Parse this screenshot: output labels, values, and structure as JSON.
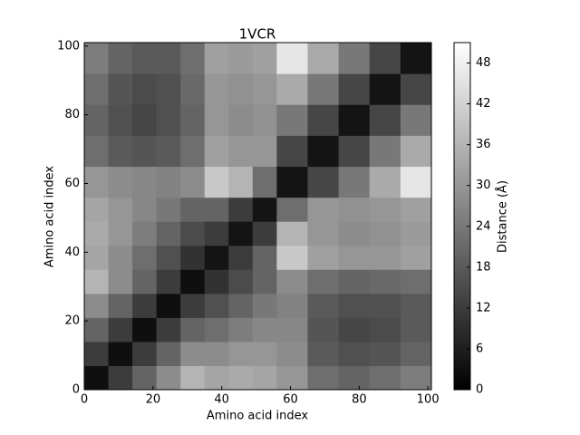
{
  "chart_data": {
    "type": "heatmap",
    "title": "1VCR",
    "xlabel": "Amino acid index",
    "ylabel": "Amino acid index",
    "colormap": "gray",
    "xbins": [
      0,
      7,
      14,
      21,
      28,
      35,
      42,
      49,
      56,
      65,
      74,
      83,
      92,
      101
    ],
    "ybins": [
      0,
      7,
      14,
      21,
      28,
      35,
      42,
      49,
      56,
      65,
      74,
      83,
      92,
      101
    ],
    "values": [
      [
        3,
        12,
        20,
        28,
        36,
        33,
        34,
        33,
        30,
        22,
        20,
        22,
        25
      ],
      [
        12,
        3,
        12,
        20,
        28,
        28,
        30,
        30,
        28,
        18,
        16,
        17,
        20
      ],
      [
        20,
        12,
        3,
        12,
        20,
        22,
        25,
        27,
        27,
        17,
        14,
        15,
        18
      ],
      [
        28,
        20,
        12,
        3,
        12,
        16,
        20,
        24,
        26,
        18,
        16,
        16,
        18
      ],
      [
        36,
        28,
        20,
        12,
        3,
        10,
        15,
        20,
        28,
        22,
        20,
        21,
        22
      ],
      [
        33,
        28,
        22,
        16,
        10,
        4,
        12,
        20,
        40,
        32,
        30,
        30,
        32
      ],
      [
        34,
        30,
        25,
        20,
        15,
        12,
        4,
        12,
        36,
        30,
        28,
        29,
        31
      ],
      [
        33,
        30,
        27,
        24,
        20,
        20,
        12,
        4,
        22,
        30,
        29,
        30,
        32
      ],
      [
        30,
        28,
        27,
        26,
        28,
        40,
        36,
        22,
        4,
        14,
        24,
        34,
        46
      ],
      [
        22,
        18,
        17,
        18,
        22,
        32,
        30,
        30,
        14,
        4,
        14,
        24,
        34
      ],
      [
        20,
        16,
        14,
        16,
        20,
        30,
        28,
        29,
        24,
        14,
        4,
        14,
        24
      ],
      [
        22,
        17,
        15,
        16,
        21,
        30,
        29,
        30,
        34,
        24,
        14,
        4,
        14
      ],
      [
        25,
        20,
        18,
        18,
        22,
        32,
        31,
        32,
        46,
        34,
        24,
        14,
        4
      ]
    ],
    "xlim": [
      0,
      101
    ],
    "ylim": [
      0,
      101
    ],
    "xticks": [
      0,
      20,
      40,
      60,
      80,
      100
    ],
    "yticks": [
      0,
      20,
      40,
      60,
      80,
      100
    ],
    "colorbar": {
      "label": "Distance (Å)",
      "lim": [
        0,
        51
      ],
      "ticks": [
        0,
        6,
        12,
        18,
        24,
        30,
        36,
        42,
        48
      ]
    }
  }
}
